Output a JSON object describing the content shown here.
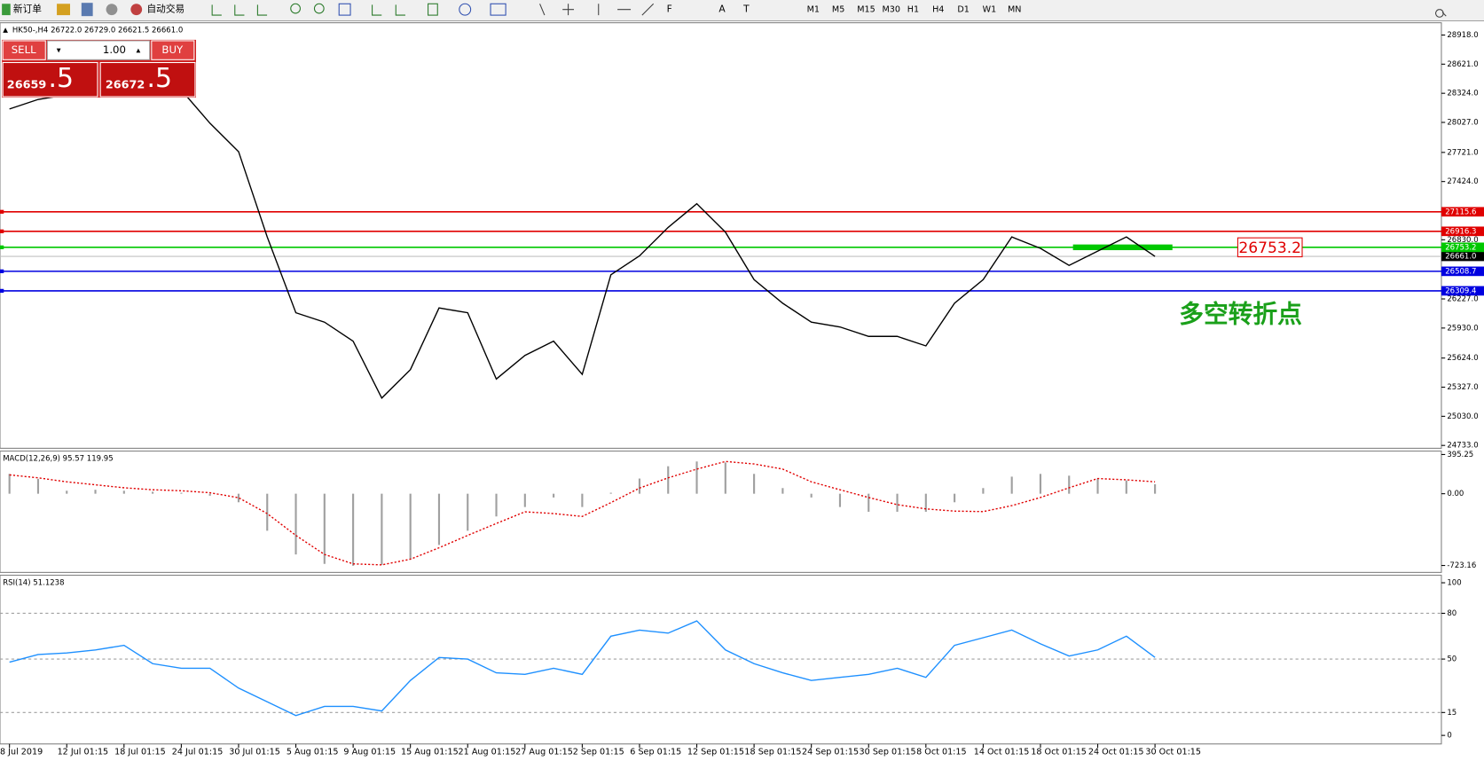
{
  "toolbar": {
    "new_order": "新订单",
    "auto_trading": "自动交易",
    "timeframes": [
      "M1",
      "M5",
      "M15",
      "M30",
      "H1",
      "H4",
      "D1",
      "W1",
      "MN"
    ]
  },
  "trade_panel": {
    "sell": "SELL",
    "buy": "BUY",
    "lots": "1.00",
    "sell_price": "26659",
    "sell_pips": ".5",
    "buy_price": "26672",
    "buy_pips": ".5"
  },
  "annotation": {
    "text": "多空转折点"
  },
  "chart_data": [
    {
      "type": "line",
      "label": "HK50-,H4  26722.0 26729.0 26621.5 26661.0",
      "color": "#000000",
      "x": [
        0,
        0.5,
        1,
        1.5,
        2,
        2.5,
        3,
        3.5,
        4,
        4.5,
        5,
        5.5,
        6,
        6.5,
        7,
        7.5,
        8,
        8.5,
        9,
        9.5,
        10,
        10.5,
        11,
        11.5,
        12,
        12.5,
        13,
        13.5,
        14,
        14.5,
        15,
        15.5,
        16,
        16.5,
        17,
        17.5,
        18,
        18.5,
        19,
        19.5,
        20
      ],
      "values": [
        28164,
        28261,
        28309,
        28357,
        28406,
        28406,
        28357,
        28019,
        27729,
        26859,
        26086,
        25990,
        25796,
        25216,
        25506,
        26135,
        26086,
        25410,
        25651,
        25796,
        25458,
        26473,
        26666,
        26956,
        27198,
        26908,
        26424,
        26183,
        25990,
        25941,
        25845,
        25845,
        25748,
        26183,
        26424,
        26859,
        26743,
        26569,
        26714,
        26859,
        26661
      ],
      "xlim": [
        0,
        25
      ],
      "xticks": [
        {
          "value": 0,
          "label": "8 Jul 2019"
        },
        {
          "value": 1,
          "label": "12 Jul 01:15"
        },
        {
          "value": 2,
          "label": "18 Jul 01:15"
        },
        {
          "value": 3,
          "label": "24 Jul 01:15"
        },
        {
          "value": 4,
          "label": "30 Jul 01:15"
        },
        {
          "value": 5,
          "label": "5 Aug 01:15"
        },
        {
          "value": 6,
          "label": "9 Aug 01:15"
        },
        {
          "value": 7,
          "label": "15 Aug 01:15"
        },
        {
          "value": 8,
          "label": "21 Aug 01:15"
        },
        {
          "value": 9,
          "label": "27 Aug 01:15"
        },
        {
          "value": 10,
          "label": "2 Sep 01:15"
        },
        {
          "value": 11,
          "label": "6 Sep 01:15"
        },
        {
          "value": 12,
          "label": "12 Sep 01:15"
        },
        {
          "value": 13,
          "label": "18 Sep 01:15"
        },
        {
          "value": 14,
          "label": "24 Sep 01:15"
        },
        {
          "value": 15,
          "label": "30 Sep 01:15"
        },
        {
          "value": 16,
          "label": "8 Oct 01:15"
        },
        {
          "value": 17,
          "label": "14 Oct 01:15"
        },
        {
          "value": 18,
          "label": "18 Oct 01:15"
        },
        {
          "value": 19,
          "label": "24 Oct 01:15"
        },
        {
          "value": 20,
          "label": "30 Oct 01:15"
        }
      ],
      "ylim": [
        24733,
        29024
      ],
      "yticks": [
        {
          "value": 24733,
          "label": "24733.0"
        },
        {
          "value": 25030,
          "label": "25030.0"
        },
        {
          "value": 25327,
          "label": "25327.0"
        },
        {
          "value": 25624,
          "label": "25624.0"
        },
        {
          "value": 25930,
          "label": "25930.0"
        },
        {
          "value": 26227,
          "label": "26227.0"
        },
        {
          "value": 26830,
          "label": "26830.0"
        },
        {
          "value": 27424,
          "label": "27424.0"
        },
        {
          "value": 27721,
          "label": "27721.0"
        },
        {
          "value": 28027,
          "label": "28027.0"
        },
        {
          "value": 28324,
          "label": "28324.0"
        },
        {
          "value": 28621,
          "label": "28621.0"
        },
        {
          "value": 28918,
          "label": "28918.0"
        }
      ],
      "levels": [
        {
          "value": 27115.6,
          "color": "#e00000"
        },
        {
          "value": 26916.3,
          "color": "#e00000"
        },
        {
          "value": 26753.2,
          "color": "#00c800"
        },
        {
          "value": 26508.7,
          "color": "#0000e0"
        },
        {
          "value": 26309.4,
          "color": "#0000e0"
        }
      ],
      "bid": {
        "value": 26661,
        "label": "26661.0"
      }
    },
    {
      "type": "macd",
      "label": "MACD(12,26,9) 95.57 119.95",
      "color": "#a0a0a0",
      "signal_color": "#e00000",
      "x": [
        0,
        0.5,
        1,
        1.5,
        2,
        2.5,
        3,
        3.5,
        4,
        4.5,
        5,
        5.5,
        6,
        6.5,
        7,
        7.5,
        8,
        8.5,
        9,
        9.5,
        10,
        10.5,
        11,
        11.5,
        12,
        12.5,
        13,
        13.5,
        14,
        14.5,
        15,
        15.5,
        16,
        16.5,
        17,
        17.5,
        18,
        18.5,
        19,
        19.5,
        20
      ],
      "values": [
        200,
        150,
        30,
        40,
        30,
        20,
        10,
        -20,
        -86,
        -373,
        -612,
        -707,
        -726,
        -717,
        -660,
        -516,
        -373,
        -229,
        -134,
        -38,
        -134,
        10,
        153,
        277,
        325,
        315,
        200,
        57,
        -38,
        -134,
        -182,
        -182,
        -182,
        -86,
        57,
        172,
        200,
        182,
        153,
        134,
        95.57
      ],
      "signal": [
        190,
        160,
        120,
        90,
        60,
        40,
        30,
        10,
        -40,
        -200,
        -420,
        -612,
        -707,
        -717,
        -660,
        -545,
        -420,
        -300,
        -182,
        -200,
        -229,
        -90,
        57,
        160,
        248,
        325,
        300,
        248,
        120,
        40,
        -38,
        -110,
        -153,
        -175,
        -180,
        -120,
        -38,
        60,
        153,
        140,
        119.95
      ],
      "ylim": [
        -793,
        420
      ],
      "yticks": [
        -723.16,
        {
          "value": 0,
          "label": "0.00"
        },
        395.25
      ]
    },
    {
      "type": "line",
      "label": "RSI(14) 51.1238",
      "color": "#1e90ff",
      "x": [
        0,
        0.5,
        1,
        1.5,
        2,
        2.5,
        3,
        3.5,
        4,
        4.5,
        5,
        5.5,
        6,
        6.5,
        7,
        7.5,
        8,
        8.5,
        9,
        9.5,
        10,
        10.5,
        11,
        11.5,
        12,
        12.5,
        13,
        13.5,
        14,
        14.5,
        15,
        15.5,
        16,
        16.5,
        17,
        17.5,
        18,
        18.5,
        19,
        19.5,
        20
      ],
      "values": [
        48,
        53,
        54,
        56,
        59,
        47,
        44,
        44,
        31,
        22,
        13,
        19,
        19,
        16,
        36,
        51,
        50,
        41,
        40,
        44,
        40,
        65,
        69,
        67,
        75,
        56,
        47,
        41,
        36,
        38,
        40,
        44,
        38,
        59,
        64,
        69,
        60,
        52,
        56,
        65,
        51.1238
      ],
      "ylim": [
        -5.6,
        104.3
      ],
      "yticks": [
        0,
        15,
        50,
        80,
        100
      ],
      "levels": [
        15,
        50,
        80
      ]
    }
  ]
}
